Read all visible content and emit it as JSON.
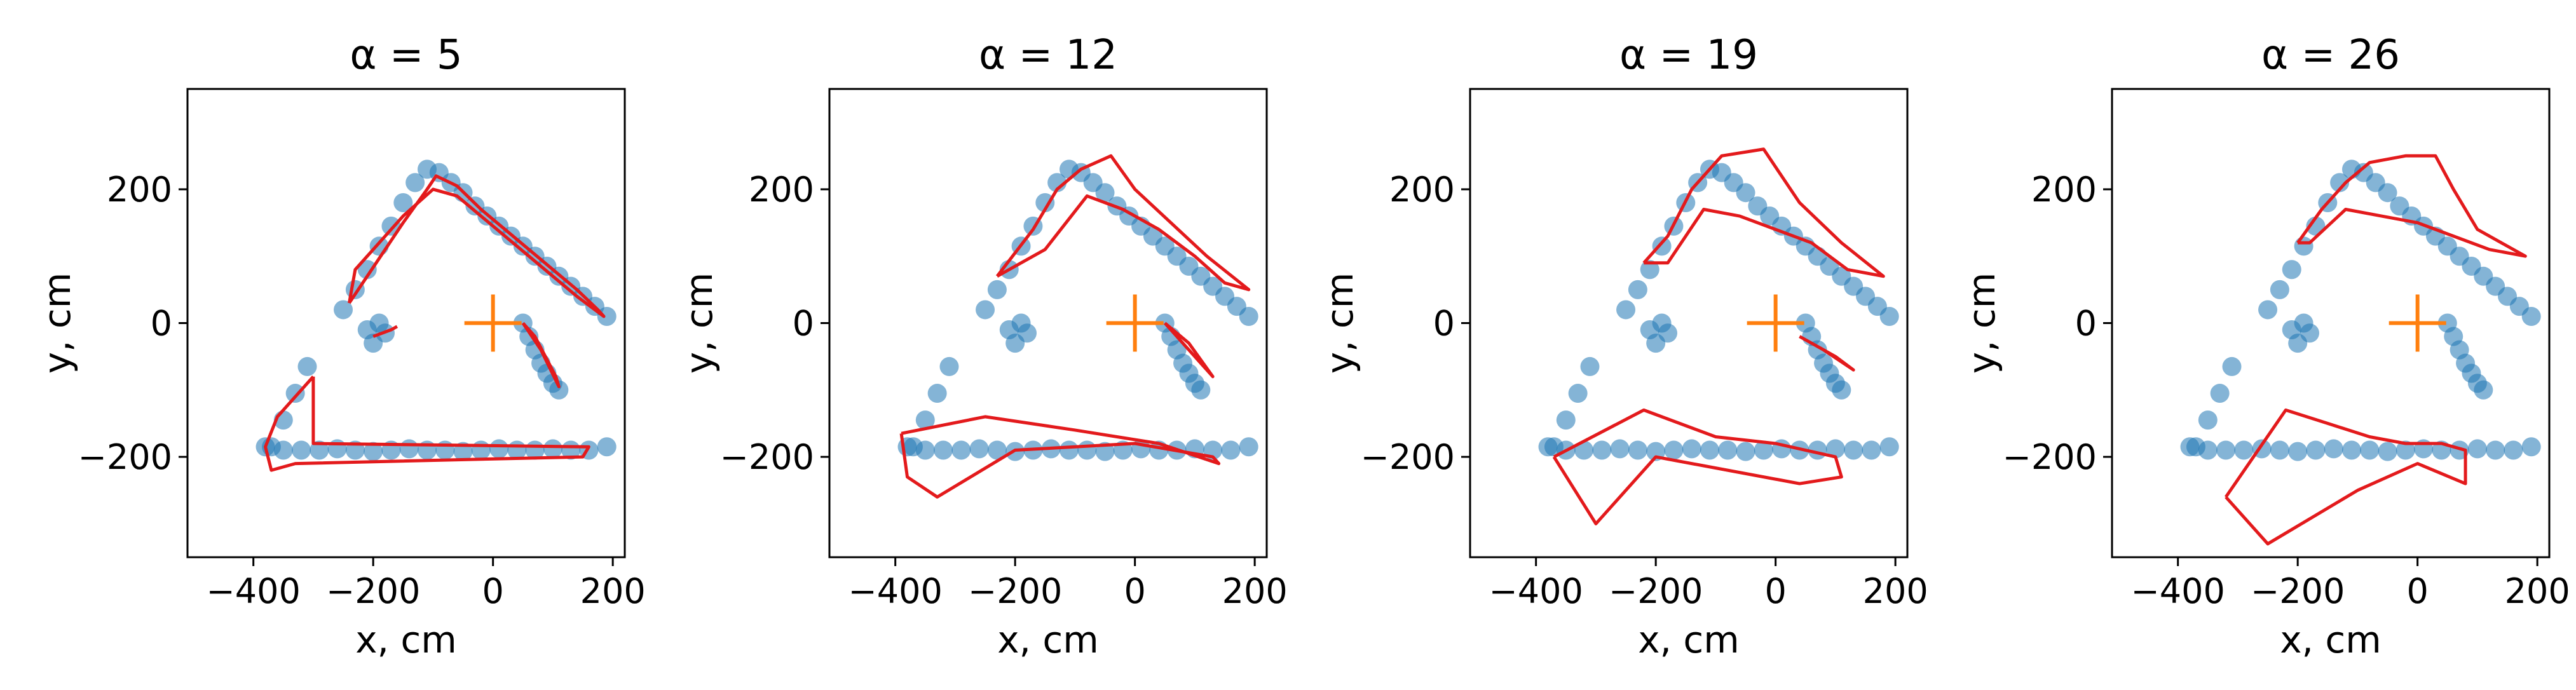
{
  "chart_data": [
    {
      "type": "scatter",
      "title": "α = 5",
      "xlabel": "x, cm",
      "ylabel": "y, cm",
      "xlim": [
        -510,
        220
      ],
      "ylim": [
        -350,
        350
      ],
      "xticks": [
        -400,
        -200,
        0,
        200
      ],
      "yticks": [
        -200,
        0,
        200
      ],
      "xtick_labels": [
        "−400",
        "−200",
        "0",
        "200"
      ],
      "ytick_labels": [
        "−200",
        "0",
        "200"
      ],
      "marker": {
        "x": 0,
        "y": 0,
        "color": "#ff7f0e"
      },
      "series": [
        {
          "name": "points",
          "color": "#1f77b4",
          "x": [
            -370,
            -350,
            -330,
            -310,
            -250,
            -230,
            -210,
            -190,
            -170,
            -150,
            -130,
            -110,
            -90,
            -70,
            -50,
            -30,
            -10,
            10,
            30,
            50,
            70,
            90,
            110,
            130,
            150,
            170,
            190,
            -380,
            -350,
            -320,
            -290,
            -260,
            -230,
            -200,
            -170,
            -140,
            -110,
            -80,
            -50,
            -20,
            10,
            40,
            70,
            100,
            130,
            160,
            190,
            -200,
            -210,
            -190,
            -180,
            50,
            60,
            70,
            80,
            90,
            100,
            110
          ],
          "y": [
            -185,
            -145,
            -105,
            -65,
            20,
            50,
            80,
            115,
            145,
            180,
            210,
            230,
            225,
            210,
            195,
            175,
            160,
            145,
            130,
            115,
            100,
            85,
            70,
            55,
            40,
            25,
            10,
            -185,
            -190,
            -190,
            -190,
            -188,
            -190,
            -192,
            -190,
            -188,
            -190,
            -190,
            -192,
            -190,
            -188,
            -190,
            -190,
            -188,
            -190,
            -190,
            -185,
            -30,
            -10,
            0,
            -15,
            0,
            -20,
            -40,
            -60,
            -75,
            -90,
            -100
          ]
        },
        {
          "name": "fit",
          "color": "#e31a1c",
          "x": [
            -240,
            -210,
            -180,
            -150,
            -110,
            -95,
            -60,
            -20,
            20,
            60,
            100,
            140,
            175,
            185,
            140,
            100,
            60,
            20,
            -20,
            -60,
            -100,
            -150,
            -190,
            -230,
            -240
          ],
          "y": [
            30,
            70,
            110,
            150,
            200,
            220,
            205,
            170,
            140,
            110,
            80,
            50,
            20,
            10,
            40,
            70,
            100,
            130,
            160,
            190,
            200,
            160,
            120,
            80,
            30
          ]
        },
        {
          "name": "fit",
          "color": "#e31a1c",
          "x": [
            -300,
            -360,
            -380,
            -370,
            -330,
            150,
            160,
            -300,
            -300
          ],
          "y": [
            -80,
            -140,
            -185,
            -220,
            -210,
            -200,
            -185,
            -180,
            -80
          ]
        },
        {
          "name": "fit",
          "color": "#e31a1c",
          "x": [
            -200,
            -170,
            -160
          ],
          "y": [
            -20,
            -10,
            -5
          ]
        },
        {
          "name": "fit",
          "color": "#e31a1c",
          "x": [
            50,
            80,
            110,
            105,
            70,
            50
          ],
          "y": [
            0,
            -40,
            -95,
            -80,
            -20,
            0
          ]
        }
      ]
    },
    {
      "type": "scatter",
      "title": "α = 12",
      "xlabel": "x, cm",
      "ylabel": "y, cm",
      "xlim": [
        -510,
        220
      ],
      "ylim": [
        -350,
        350
      ],
      "xticks": [
        -400,
        -200,
        0,
        200
      ],
      "yticks": [
        -200,
        0,
        200
      ],
      "xtick_labels": [
        "−400",
        "−200",
        "0",
        "200"
      ],
      "ytick_labels": [
        "−200",
        "0",
        "200"
      ],
      "marker": {
        "x": 0,
        "y": 0,
        "color": "#ff7f0e"
      },
      "series": [
        {
          "name": "points",
          "color": "#1f77b4",
          "x": [
            -370,
            -350,
            -330,
            -310,
            -250,
            -230,
            -210,
            -190,
            -170,
            -150,
            -130,
            -110,
            -90,
            -70,
            -50,
            -30,
            -10,
            10,
            30,
            50,
            70,
            90,
            110,
            130,
            150,
            170,
            190,
            -380,
            -350,
            -320,
            -290,
            -260,
            -230,
            -200,
            -170,
            -140,
            -110,
            -80,
            -50,
            -20,
            10,
            40,
            70,
            100,
            130,
            160,
            190,
            -200,
            -210,
            -190,
            -180,
            50,
            60,
            70,
            80,
            90,
            100,
            110
          ],
          "y": [
            -185,
            -145,
            -105,
            -65,
            20,
            50,
            80,
            115,
            145,
            180,
            210,
            230,
            225,
            210,
            195,
            175,
            160,
            145,
            130,
            115,
            100,
            85,
            70,
            55,
            40,
            25,
            10,
            -185,
            -190,
            -190,
            -190,
            -188,
            -190,
            -192,
            -190,
            -188,
            -190,
            -190,
            -192,
            -190,
            -188,
            -190,
            -190,
            -188,
            -190,
            -190,
            -185,
            -30,
            -10,
            0,
            -15,
            0,
            -20,
            -40,
            -60,
            -75,
            -90,
            -100
          ]
        },
        {
          "name": "fit",
          "color": "#e31a1c",
          "x": [
            -230,
            -170,
            -130,
            -90,
            -40,
            0,
            60,
            120,
            190,
            150,
            100,
            40,
            -20,
            -80,
            -150,
            -230
          ],
          "y": [
            70,
            140,
            200,
            230,
            250,
            200,
            150,
            100,
            50,
            60,
            100,
            140,
            170,
            190,
            110,
            70
          ]
        },
        {
          "name": "fit",
          "color": "#e31a1c",
          "x": [
            -390,
            -250,
            -100,
            40,
            140,
            130,
            0,
            -200,
            -330,
            -380,
            -390
          ],
          "y": [
            -165,
            -140,
            -160,
            -180,
            -210,
            -200,
            -180,
            -190,
            -260,
            -230,
            -165
          ]
        },
        {
          "name": "fit",
          "color": "#e31a1c",
          "x": [
            50,
            90,
            130,
            110,
            70,
            50
          ],
          "y": [
            0,
            -30,
            -80,
            -60,
            -20,
            0
          ]
        }
      ]
    },
    {
      "type": "scatter",
      "title": "α = 19",
      "xlabel": "x, cm",
      "ylabel": "y, cm",
      "xlim": [
        -510,
        220
      ],
      "ylim": [
        -350,
        350
      ],
      "xticks": [
        -400,
        -200,
        0,
        200
      ],
      "yticks": [
        -200,
        0,
        200
      ],
      "xtick_labels": [
        "−400",
        "−200",
        "0",
        "200"
      ],
      "ytick_labels": [
        "−200",
        "0",
        "200"
      ],
      "marker": {
        "x": 0,
        "y": 0,
        "color": "#ff7f0e"
      },
      "series": [
        {
          "name": "points",
          "color": "#1f77b4",
          "x": [
            -370,
            -350,
            -330,
            -310,
            -250,
            -230,
            -210,
            -190,
            -170,
            -150,
            -130,
            -110,
            -90,
            -70,
            -50,
            -30,
            -10,
            10,
            30,
            50,
            70,
            90,
            110,
            130,
            150,
            170,
            190,
            -380,
            -350,
            -320,
            -290,
            -260,
            -230,
            -200,
            -170,
            -140,
            -110,
            -80,
            -50,
            -20,
            10,
            40,
            70,
            100,
            130,
            160,
            190,
            -200,
            -210,
            -190,
            -180,
            50,
            60,
            70,
            80,
            90,
            100,
            110
          ],
          "y": [
            -185,
            -145,
            -105,
            -65,
            20,
            50,
            80,
            115,
            145,
            180,
            210,
            230,
            225,
            210,
            195,
            175,
            160,
            145,
            130,
            115,
            100,
            85,
            70,
            55,
            40,
            25,
            10,
            -185,
            -190,
            -190,
            -190,
            -188,
            -190,
            -192,
            -190,
            -188,
            -190,
            -190,
            -192,
            -190,
            -188,
            -190,
            -190,
            -188,
            -190,
            -190,
            -185,
            -30,
            -10,
            0,
            -15,
            0,
            -20,
            -40,
            -60,
            -75,
            -90,
            -100
          ]
        },
        {
          "name": "fit",
          "color": "#e31a1c",
          "x": [
            -220,
            -180,
            -140,
            -90,
            -20,
            40,
            110,
            180,
            120,
            60,
            0,
            -60,
            -120,
            -180,
            -220
          ],
          "y": [
            90,
            130,
            200,
            250,
            260,
            180,
            120,
            70,
            80,
            120,
            140,
            160,
            170,
            90,
            90
          ]
        },
        {
          "name": "fit",
          "color": "#e31a1c",
          "x": [
            -370,
            -220,
            -100,
            0,
            100,
            110,
            40,
            -200,
            -300,
            -370
          ],
          "y": [
            -200,
            -130,
            -170,
            -180,
            -200,
            -230,
            -240,
            -200,
            -300,
            -200
          ]
        },
        {
          "name": "fit",
          "color": "#e31a1c",
          "x": [
            40,
            80,
            130,
            100,
            60,
            40
          ],
          "y": [
            -20,
            -40,
            -70,
            -50,
            -30,
            -20
          ]
        }
      ]
    },
    {
      "type": "scatter",
      "title": "α = 26",
      "xlabel": "x, cm",
      "ylabel": "y, cm",
      "xlim": [
        -510,
        220
      ],
      "ylim": [
        -350,
        350
      ],
      "xticks": [
        -400,
        -200,
        0,
        200
      ],
      "yticks": [
        -200,
        0,
        200
      ],
      "xtick_labels": [
        "−400",
        "−200",
        "0",
        "200"
      ],
      "ytick_labels": [
        "−200",
        "0",
        "200"
      ],
      "marker": {
        "x": 0,
        "y": 0,
        "color": "#ff7f0e"
      },
      "series": [
        {
          "name": "points",
          "color": "#1f77b4",
          "x": [
            -370,
            -350,
            -330,
            -310,
            -250,
            -230,
            -210,
            -190,
            -170,
            -150,
            -130,
            -110,
            -90,
            -70,
            -50,
            -30,
            -10,
            10,
            30,
            50,
            70,
            90,
            110,
            130,
            150,
            170,
            190,
            -380,
            -350,
            -320,
            -290,
            -260,
            -230,
            -200,
            -170,
            -140,
            -110,
            -80,
            -50,
            -20,
            10,
            40,
            70,
            100,
            130,
            160,
            190,
            -200,
            -210,
            -190,
            -180,
            50,
            60,
            70,
            80,
            90,
            100,
            110
          ],
          "y": [
            -185,
            -145,
            -105,
            -65,
            20,
            50,
            80,
            115,
            145,
            180,
            210,
            230,
            225,
            210,
            195,
            175,
            160,
            145,
            130,
            115,
            100,
            85,
            70,
            55,
            40,
            25,
            10,
            -185,
            -190,
            -190,
            -190,
            -188,
            -190,
            -192,
            -190,
            -188,
            -190,
            -190,
            -192,
            -190,
            -188,
            -190,
            -190,
            -188,
            -190,
            -190,
            -185,
            -30,
            -10,
            0,
            -15,
            0,
            -20,
            -40,
            -60,
            -75,
            -90,
            -100
          ]
        },
        {
          "name": "fit",
          "color": "#e31a1c",
          "x": [
            -200,
            -160,
            -120,
            -80,
            -20,
            30,
            60,
            100,
            180,
            120,
            60,
            0,
            -60,
            -120,
            -180,
            -200
          ],
          "y": [
            120,
            170,
            210,
            240,
            250,
            250,
            200,
            140,
            100,
            110,
            130,
            150,
            160,
            170,
            120,
            120
          ]
        },
        {
          "name": "fit",
          "color": "#e31a1c",
          "x": [
            -320,
            -220,
            -150,
            -80,
            -20,
            40,
            80,
            80,
            0,
            -100,
            -250,
            -320
          ],
          "y": [
            -260,
            -130,
            -150,
            -170,
            -180,
            -180,
            -190,
            -240,
            -210,
            -250,
            -330,
            -260
          ]
        }
      ]
    }
  ]
}
